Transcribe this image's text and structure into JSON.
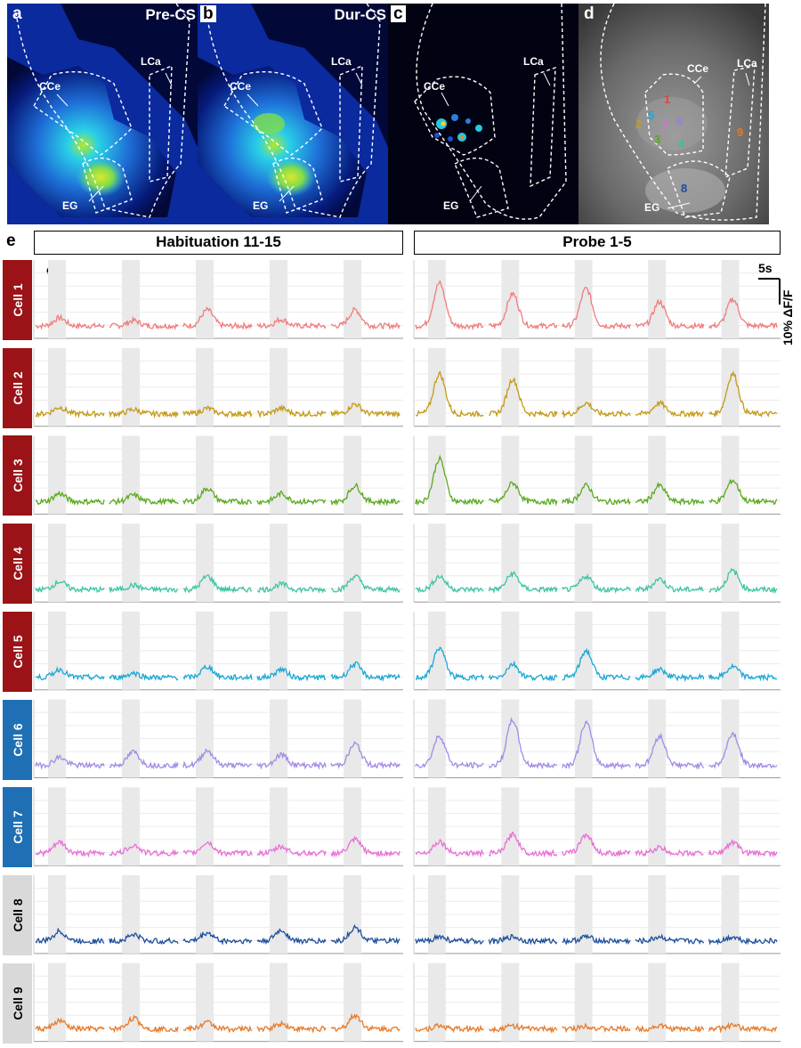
{
  "panels": [
    {
      "letter": "a",
      "title": "Pre-CS",
      "labels": {
        "cce": "CCe",
        "lca": "LCa",
        "eg": "EG"
      }
    },
    {
      "letter": "b",
      "title": "Dur-CS",
      "labels": {
        "cce": "CCe",
        "lca": "LCa",
        "eg": "EG"
      }
    },
    {
      "letter": "c",
      "title": "",
      "labels": {
        "cce": "CCe",
        "lca": "LCa",
        "eg": "EG"
      }
    },
    {
      "letter": "d",
      "title": "",
      "labels": {
        "cce": "CCe",
        "lca": "LCa",
        "eg": "EG"
      }
    }
  ],
  "roi_markers": [
    {
      "n": "1",
      "color": "#e8413c"
    },
    {
      "n": "2",
      "color": "#c79a1a"
    },
    {
      "n": "3",
      "color": "#5aa81e"
    },
    {
      "n": "4",
      "color": "#2fc49a"
    },
    {
      "n": "5",
      "color": "#19a8d8"
    },
    {
      "n": "6",
      "color": "#9b7be8"
    },
    {
      "n": "7",
      "color": "#e36ad6"
    },
    {
      "n": "8",
      "color": "#1a4ea0"
    },
    {
      "n": "9",
      "color": "#e87a28"
    }
  ],
  "panel_e": {
    "letter": "e",
    "groups": [
      "Habituation 11-15",
      "Probe 1-5"
    ],
    "cs_label": "CS",
    "scalebar": {
      "time": "5s",
      "amplitude": "10% ΔF/F"
    }
  },
  "cells": [
    {
      "label": "Cell 1",
      "tab": "crimson",
      "color": "#f07c7c",
      "hab": [
        0.15,
        0.1,
        0.3,
        0.12,
        0.3
      ],
      "probe": [
        0.8,
        0.6,
        0.7,
        0.45,
        0.5
      ]
    },
    {
      "label": "Cell 2",
      "tab": "crimson",
      "color": "#c49a14",
      "hab": [
        0.12,
        0.08,
        0.1,
        0.1,
        0.18
      ],
      "probe": [
        0.75,
        0.65,
        0.2,
        0.2,
        0.75
      ]
    },
    {
      "label": "Cell 3",
      "tab": "crimson",
      "color": "#5aa91e",
      "hab": [
        0.15,
        0.12,
        0.25,
        0.15,
        0.3
      ],
      "probe": [
        0.8,
        0.35,
        0.3,
        0.3,
        0.4
      ]
    },
    {
      "label": "Cell 4",
      "tab": "crimson",
      "color": "#3ec5a2",
      "hab": [
        0.15,
        0.08,
        0.25,
        0.1,
        0.25
      ],
      "probe": [
        0.25,
        0.3,
        0.25,
        0.2,
        0.35
      ]
    },
    {
      "label": "Cell 5",
      "tab": "crimson",
      "color": "#19a8d6",
      "hab": [
        0.15,
        0.08,
        0.2,
        0.15,
        0.25
      ],
      "probe": [
        0.55,
        0.25,
        0.5,
        0.15,
        0.2
      ]
    },
    {
      "label": "Cell 6",
      "tab": "blue",
      "color": "#a28be8",
      "hab": [
        0.15,
        0.25,
        0.28,
        0.2,
        0.4
      ],
      "probe": [
        0.55,
        0.85,
        0.8,
        0.55,
        0.6
      ]
    },
    {
      "label": "Cell 7",
      "tab": "blue",
      "color": "#e970d7",
      "hab": [
        0.2,
        0.15,
        0.2,
        0.12,
        0.25
      ],
      "probe": [
        0.22,
        0.35,
        0.35,
        0.1,
        0.2
      ]
    },
    {
      "label": "Cell 8",
      "tab": "gray",
      "color": "#1e4f9c",
      "hab": [
        0.18,
        0.12,
        0.15,
        0.2,
        0.25
      ],
      "probe": [
        0.08,
        0.08,
        0.08,
        0.08,
        0.08
      ]
    },
    {
      "label": "Cell 9",
      "tab": "gray",
      "color": "#e87b2a",
      "hab": [
        0.15,
        0.2,
        0.12,
        0.1,
        0.25
      ],
      "probe": [
        0.06,
        0.06,
        0.06,
        0.06,
        0.06
      ]
    }
  ]
}
